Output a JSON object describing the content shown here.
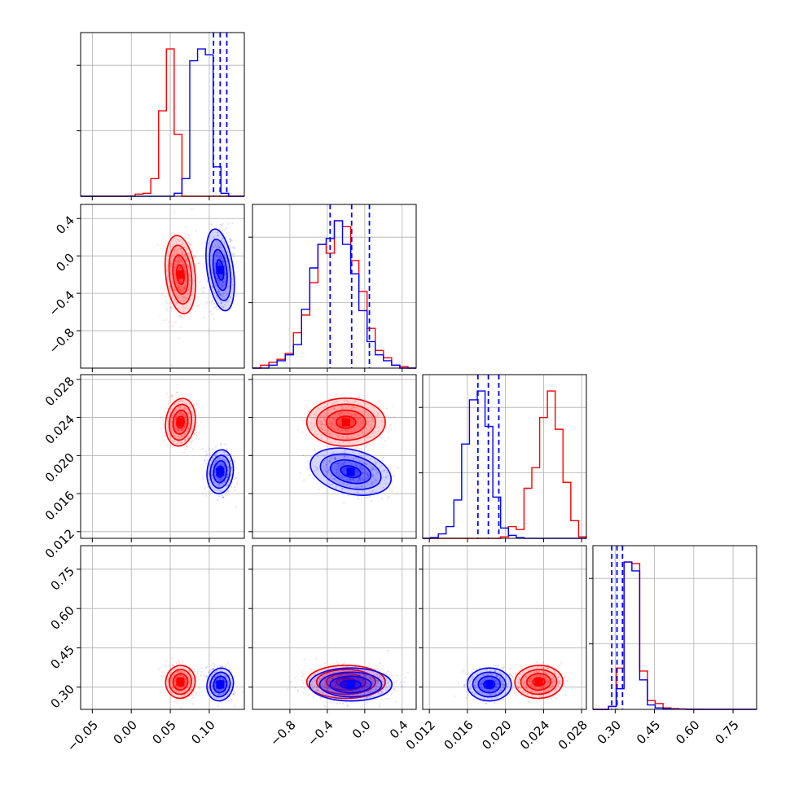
{
  "colors": {
    "red": "#ff0000",
    "blue": "#0000ff",
    "grid": "#b0b0b0",
    "axis": "#000000"
  },
  "chart_data": {
    "type": "corner",
    "title": "",
    "grid": true,
    "parameters": [
      {
        "ticks": [
          -0.05,
          0.0,
          0.05,
          0.1
        ],
        "tick_labels": [
          "−0.05",
          "0.00",
          "0.05",
          "0.10"
        ],
        "range": [
          -0.065,
          0.145
        ]
      },
      {
        "ticks": [
          -0.8,
          -0.4,
          0.0,
          0.4
        ],
        "tick_labels": [
          "−0.8",
          "−0.4",
          "0.0",
          "0.4"
        ],
        "range": [
          -1.2,
          0.55
        ]
      },
      {
        "ticks": [
          0.012,
          0.016,
          0.02,
          0.024,
          0.028
        ],
        "tick_labels": [
          "0.012",
          "0.016",
          "0.020",
          "0.024",
          "0.028"
        ],
        "range": [
          0.0113,
          0.0285
        ]
      },
      {
        "ticks": [
          0.3,
          0.45,
          0.6,
          0.75
        ],
        "tick_labels": [
          "0.30",
          "0.45",
          "0.60",
          "0.75"
        ],
        "range": [
          0.215,
          0.84
        ]
      }
    ],
    "series": [
      {
        "color": "red",
        "means": [
          0.063,
          -0.2,
          0.0235,
          0.32
        ],
        "sds": [
          0.009,
          0.2,
          0.0012,
          0.03
        ],
        "correlations": [
          [
            0,
            1,
            0.15
          ],
          [
            0,
            2,
            -0.2
          ],
          [
            1,
            2,
            0.0
          ],
          [
            0,
            3,
            -0.25
          ],
          [
            1,
            3,
            0.0
          ],
          [
            2,
            3,
            0.05
          ]
        ],
        "hist": [
          [
            0,
            0,
            0,
            0,
            0,
            0,
            0.002,
            0.015,
            0.02,
            0.12,
            0.58,
            1.0,
            0.42,
            0,
            0,
            0,
            0,
            0,
            0,
            0,
            0
          ],
          [
            0,
            0.02,
            0.04,
            0.06,
            0.1,
            0.24,
            0.36,
            0.58,
            0.84,
            0.78,
            1.0,
            0.96,
            0.73,
            0.52,
            0.27,
            0.12,
            0.07,
            0.02,
            0.01,
            0
          ],
          [
            0,
            0,
            0,
            0,
            0,
            0,
            0,
            0,
            0,
            0,
            0.01,
            0.08,
            0.06,
            0.34,
            0.48,
            0.82,
            1.0,
            0.74,
            0.38,
            0.12,
            0.01
          ],
          [
            0,
            0,
            0.02,
            0.28,
            1.0,
            0.99,
            0.26,
            0.06,
            0.04,
            0.01,
            0.005,
            0.003,
            0.002,
            0.002,
            0.001,
            0.001,
            0.001,
            0.001,
            0.001,
            0.001,
            0.001
          ]
        ]
      },
      {
        "color": "blue",
        "means": [
          0.114,
          -0.15,
          0.0183,
          0.31
        ],
        "sds": [
          0.008,
          0.21,
          0.0011,
          0.03
        ],
        "correlations": [
          [
            0,
            1,
            0.2
          ],
          [
            0,
            2,
            -0.15
          ],
          [
            1,
            2,
            -0.35
          ],
          [
            0,
            3,
            -0.3
          ],
          [
            1,
            3,
            0.0
          ],
          [
            2,
            3,
            0.0
          ]
        ],
        "hist": [
          [
            0,
            0,
            0,
            0,
            0,
            0,
            0,
            0,
            0,
            0,
            0,
            0,
            0.02,
            0.12,
            0.92,
            1.0,
            0.96,
            0.2,
            0.02,
            0,
            0
          ],
          [
            0,
            0,
            0.02,
            0.05,
            0.09,
            0.16,
            0.4,
            0.68,
            0.84,
            0.88,
            1.0,
            0.84,
            0.64,
            0.39,
            0.18,
            0.09,
            0.05,
            0.02,
            0,
            0
          ],
          [
            0,
            0.005,
            0.03,
            0.08,
            0.26,
            0.64,
            0.94,
            1.0,
            0.76,
            0.28,
            0.07,
            0.02,
            0.005,
            0,
            0,
            0,
            0,
            0,
            0,
            0,
            0
          ],
          [
            0,
            0,
            0.02,
            0.14,
            1.0,
            0.94,
            0.2,
            0.03,
            0.01,
            0.005,
            0.002,
            0.001,
            0,
            0,
            0,
            0,
            0,
            0,
            0,
            0,
            0
          ]
        ]
      }
    ],
    "quantile_lines": {
      "color": "blue",
      "values": [
        [
          0.1055,
          0.114,
          0.1225
        ],
        [
          -0.37,
          -0.14,
          0.05
        ],
        [
          0.0171,
          0.0182,
          0.0193
        ],
        [
          0.287,
          0.307,
          0.328
        ]
      ]
    }
  }
}
